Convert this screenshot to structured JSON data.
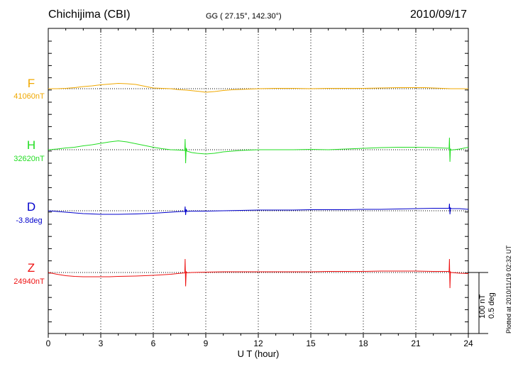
{
  "header": {
    "station": "Chichijima (CBI)",
    "coords": "GG ( 27.15°, 142.30°)",
    "date": "2010/09/17"
  },
  "footer": {
    "plotted": "Plotted at 2010/11/19 02:32 UT"
  },
  "chart_data": {
    "type": "line",
    "xlabel": "U T (hour)",
    "xlim": [
      0,
      24
    ],
    "xticks": [
      0,
      3,
      6,
      9,
      12,
      15,
      18,
      21,
      24
    ],
    "grid": true,
    "scale_bar": {
      "labels": [
        "100 nT",
        "0.5 deg"
      ]
    },
    "series": [
      {
        "name": "F",
        "baseline_label": "41060nT",
        "color": "#f0a800",
        "unit": "nT",
        "x": [
          0,
          0.5,
          1,
          1.5,
          2,
          2.5,
          3,
          3.5,
          4,
          4.5,
          5,
          5.5,
          6,
          6.5,
          7,
          7.5,
          7.9,
          8.3,
          8.7,
          9,
          9.5,
          10,
          10.5,
          11,
          11.5,
          12,
          13,
          14,
          15,
          16,
          17,
          18,
          19,
          20,
          21,
          21.5,
          22,
          22.5,
          23,
          23.5,
          24
        ],
        "y": [
          0,
          0,
          1,
          3,
          6,
          8,
          11,
          13,
          15,
          14,
          12,
          7,
          2,
          1,
          0,
          -3,
          -4,
          -6,
          -8,
          -10,
          -8,
          -5,
          -3,
          -2,
          -1,
          0,
          1,
          1,
          0,
          1,
          1,
          1,
          2,
          3,
          3,
          3,
          2,
          1,
          0,
          0,
          0
        ]
      },
      {
        "name": "H",
        "baseline_label": "32620nT",
        "color": "#22dd22",
        "unit": "nT",
        "x": [
          0,
          0.5,
          1,
          1.5,
          2,
          2.5,
          3,
          3.5,
          4,
          4.5,
          5,
          5.5,
          6,
          6.5,
          7,
          7.5,
          7.8,
          7.82,
          7.85,
          7.88,
          7.92,
          8.2,
          8.5,
          9,
          9.5,
          10,
          10.5,
          11,
          11.5,
          12,
          13,
          14,
          15,
          16,
          17,
          18,
          19,
          20,
          21,
          22,
          22.9,
          22.92,
          22.95,
          22.98,
          23.02,
          23.5,
          24
        ],
        "y": [
          0,
          2,
          5,
          7,
          11,
          14,
          18,
          22,
          25,
          22,
          17,
          12,
          7,
          3,
          0,
          -1,
          -2,
          30,
          -38,
          5,
          -4,
          -8,
          -10,
          -12,
          -10,
          -6,
          -4,
          -2,
          -1,
          0,
          0,
          0,
          1,
          0,
          2,
          4,
          6,
          7,
          7,
          6,
          4,
          34,
          -34,
          3,
          -1,
          2,
          7
        ]
      },
      {
        "name": "D",
        "baseline_label": "-3.8deg",
        "color": "#0000cc",
        "unit": "deg",
        "x": [
          0,
          0.5,
          1,
          1.5,
          2,
          2.5,
          3,
          3.5,
          4,
          5,
          6,
          7,
          7.6,
          7.8,
          7.82,
          7.85,
          7.88,
          7.92,
          8.2,
          9,
          10,
          11,
          12,
          13,
          14,
          15,
          16,
          17,
          18,
          19,
          20,
          21,
          22,
          22.9,
          22.92,
          22.95,
          22.98,
          23.02,
          23.5,
          24
        ],
        "y": [
          0,
          -0.01,
          -0.02,
          -0.03,
          -0.04,
          -0.045,
          -0.05,
          -0.05,
          -0.05,
          -0.045,
          -0.035,
          -0.02,
          -0.01,
          -0.01,
          0.06,
          -0.06,
          0.02,
          -0.01,
          -0.005,
          -0.005,
          0,
          0.005,
          0.01,
          0.01,
          0.01,
          0.015,
          0.015,
          0.015,
          0.02,
          0.02,
          0.025,
          0.03,
          0.035,
          0.035,
          0.1,
          -0.05,
          0.04,
          0.03,
          0.03,
          0.02
        ]
      },
      {
        "name": "Z",
        "baseline_label": "24940nT",
        "color": "#ee1111",
        "unit": "nT",
        "x": [
          0,
          0.5,
          1,
          1.5,
          2,
          2.5,
          3,
          3.5,
          4,
          5,
          6,
          7,
          7.6,
          7.8,
          7.82,
          7.85,
          7.88,
          7.92,
          8.2,
          9,
          10,
          11,
          12,
          13,
          14,
          15,
          16,
          17,
          18,
          19,
          20,
          21,
          22,
          22.9,
          22.92,
          22.95,
          22.98,
          23.02,
          23.5,
          24
        ],
        "y": [
          0,
          -5,
          -9,
          -11,
          -12,
          -12,
          -12,
          -12,
          -11,
          -10,
          -8,
          -5,
          -2,
          -1,
          38,
          -39,
          2,
          -1,
          0,
          1,
          2,
          2,
          2,
          2,
          2,
          2,
          3,
          3,
          3,
          4,
          4,
          4,
          3,
          3,
          38,
          -44,
          2,
          0,
          -2,
          -3
        ]
      }
    ]
  }
}
